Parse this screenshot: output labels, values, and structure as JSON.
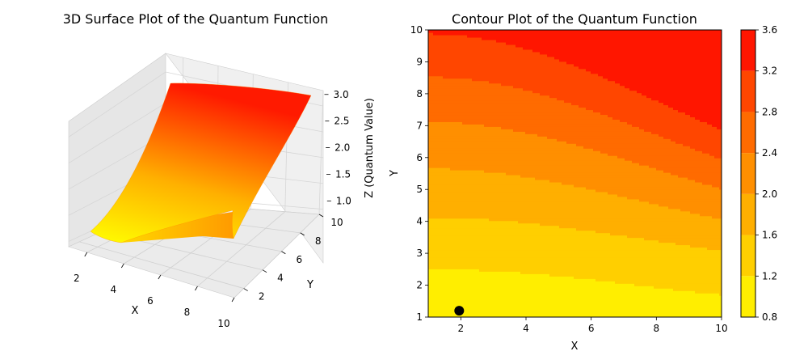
{
  "chart_data": [
    {
      "type": "surface3d",
      "title": "3D Surface Plot of the Quantum Function",
      "xlabel": "X",
      "ylabel": "Y",
      "zlabel": "Z (Quantum Value)",
      "x_ticks": [
        "2",
        "4",
        "6",
        "8",
        "10"
      ],
      "y_ticks": [
        "2",
        "4",
        "6",
        "8",
        "10"
      ],
      "z_ticks": [
        "1.0",
        "1.5",
        "2.0",
        "2.5",
        "3.0"
      ],
      "xlim": [
        1,
        10
      ],
      "ylim": [
        1,
        10
      ],
      "zlim": [
        0.9,
        3.3
      ],
      "colormap": [
        "#ffff00",
        "#ff0000"
      ],
      "corner_values": {
        "x1_y1": 0.9,
        "x10_y1": 0.95,
        "x1_y10": 3.2,
        "x10_y10": 3.3
      }
    },
    {
      "type": "contour",
      "title": "Contour Plot of the Quantum Function",
      "xlabel": "X",
      "ylabel": "Y",
      "xlim": [
        1,
        10
      ],
      "ylim": [
        1,
        10
      ],
      "x_ticks": [
        "2",
        "4",
        "6",
        "8",
        "10"
      ],
      "y_ticks": [
        "1",
        "2",
        "3",
        "4",
        "5",
        "6",
        "7",
        "8",
        "9",
        "10"
      ],
      "levels": [
        0.8,
        1.2,
        1.6,
        2.0,
        2.4,
        2.8,
        3.2,
        3.6
      ],
      "colorbar_ticks": [
        "0.8",
        "1.2",
        "1.6",
        "2.0",
        "2.4",
        "2.8",
        "3.2",
        "3.6"
      ],
      "band_colors": [
        "#ffee00",
        "#ffcf00",
        "#ffaf00",
        "#ff8f00",
        "#ff6b00",
        "#ff4600",
        "#ff1600"
      ],
      "grid": false,
      "marker": {
        "x": 1.95,
        "y": 1.2,
        "color": "#000000"
      }
    }
  ]
}
